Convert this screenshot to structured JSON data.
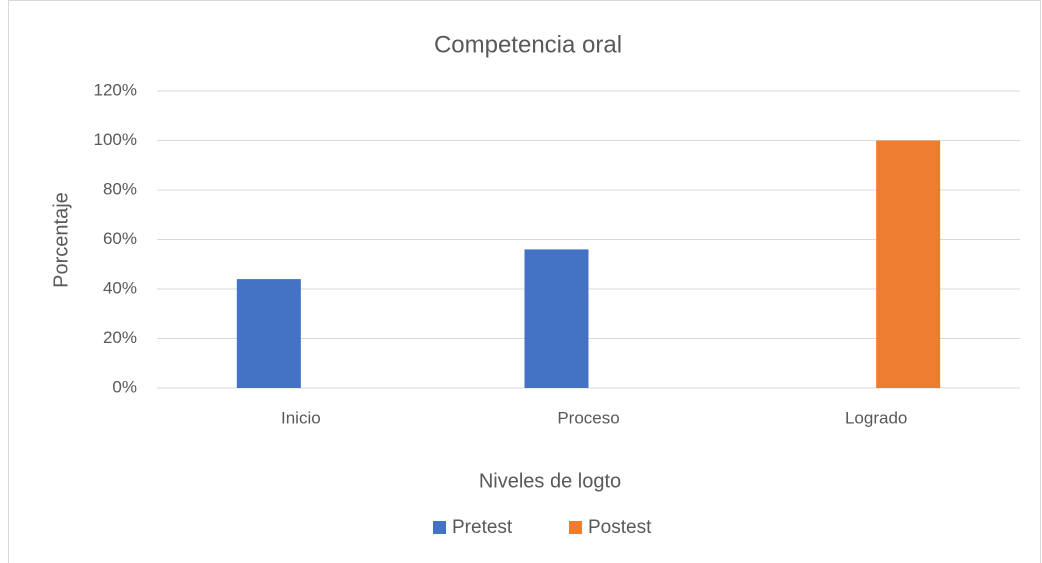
{
  "chart_data": {
    "type": "bar",
    "title": "Competencia oral",
    "x_label": "Niveles de logto",
    "y_label": "Porcentaje",
    "categories": [
      "Inicio",
      "Proceso",
      "Logrado"
    ],
    "series": [
      {
        "name": "Pretest",
        "color": "#4472c4",
        "values": [
          44,
          56,
          0
        ]
      },
      {
        "name": "Postest",
        "color": "#ed7d31",
        "values": [
          0,
          0,
          100
        ]
      }
    ],
    "ylim": [
      0,
      120
    ],
    "yticks": [
      {
        "value": 0,
        "label": "0%"
      },
      {
        "value": 20,
        "label": "20%"
      },
      {
        "value": 40,
        "label": "40%"
      },
      {
        "value": 60,
        "label": "60%"
      },
      {
        "value": 80,
        "label": "80%"
      },
      {
        "value": 100,
        "label": "100%"
      },
      {
        "value": 120,
        "label": "120%"
      }
    ],
    "grid": true,
    "legend": "bottom"
  }
}
